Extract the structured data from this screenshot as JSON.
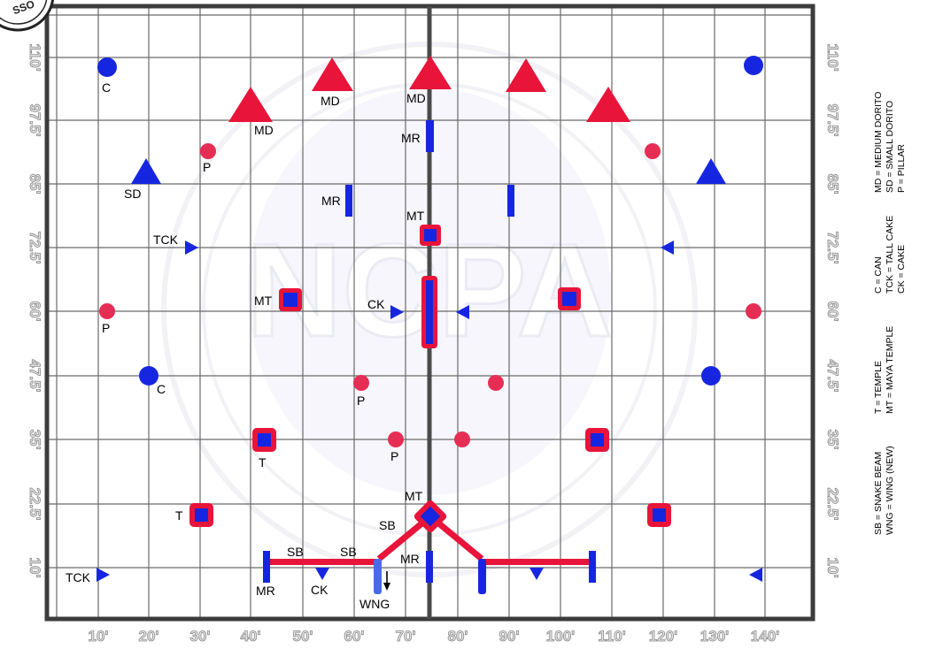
{
  "header": {
    "logo_text": "SSO"
  },
  "watermark": {
    "text": "NCPA"
  },
  "field": {
    "x_ticks": [
      "10'",
      "20'",
      "30'",
      "40'",
      "50'",
      "60'",
      "70'",
      "80'",
      "90'",
      "100'",
      "110'",
      "120'",
      "130'",
      "140'"
    ],
    "y_ticks": [
      "110'",
      "97.5'",
      "85'",
      "72.5'",
      "60'",
      "47.5'",
      "35'",
      "22.5'",
      "10'"
    ],
    "y_ticks_right": [
      "110'",
      "97.5'",
      "85'",
      "72.5'",
      "60'",
      "47.5'",
      "35'",
      "22.5'",
      "10'"
    ]
  },
  "legend": {
    "group1": [
      "MD = MEDIUM DORITO",
      "SD = SMALL DORITO",
      "P = PILLAR"
    ],
    "group2": [
      "C = CAN",
      "TCK = TALL CAKE",
      "CK = CAKE"
    ],
    "group3": [
      "T = TEMPLE",
      "MT = MAYA TEMPLE"
    ],
    "group4": [
      "SB = SNAKE BEAM",
      "WNG = WING (NEW)"
    ]
  },
  "labels": {
    "md1": "MD",
    "md2": "MD",
    "md3": "MD",
    "mr1": "MR",
    "mr2": "MR",
    "mr3": "MR",
    "mr4": "MR",
    "sd": "SD",
    "p1": "P",
    "p2": "P",
    "p3": "P",
    "p4": "P",
    "c1": "C",
    "c2": "C",
    "tck1": "TCK",
    "tck2": "TCK",
    "mt1": "MT",
    "mt2": "MT",
    "mt3": "MT",
    "ck1": "CK",
    "ck2": "CK",
    "t1": "T",
    "t2": "T",
    "sb1": "SB",
    "sb2": "SB",
    "sb3": "SB",
    "wng": "WNG"
  },
  "colors": {
    "bunker_blue": "#1626e0",
    "bunker_red": "#e8143a",
    "pillar_pink": "#e62e55",
    "grid": "#6a6a6a",
    "border": "#3c3c3c"
  },
  "icons": [
    "logo-seal-icon",
    "watermark-seal-icon",
    "arrow-down-icon"
  ]
}
